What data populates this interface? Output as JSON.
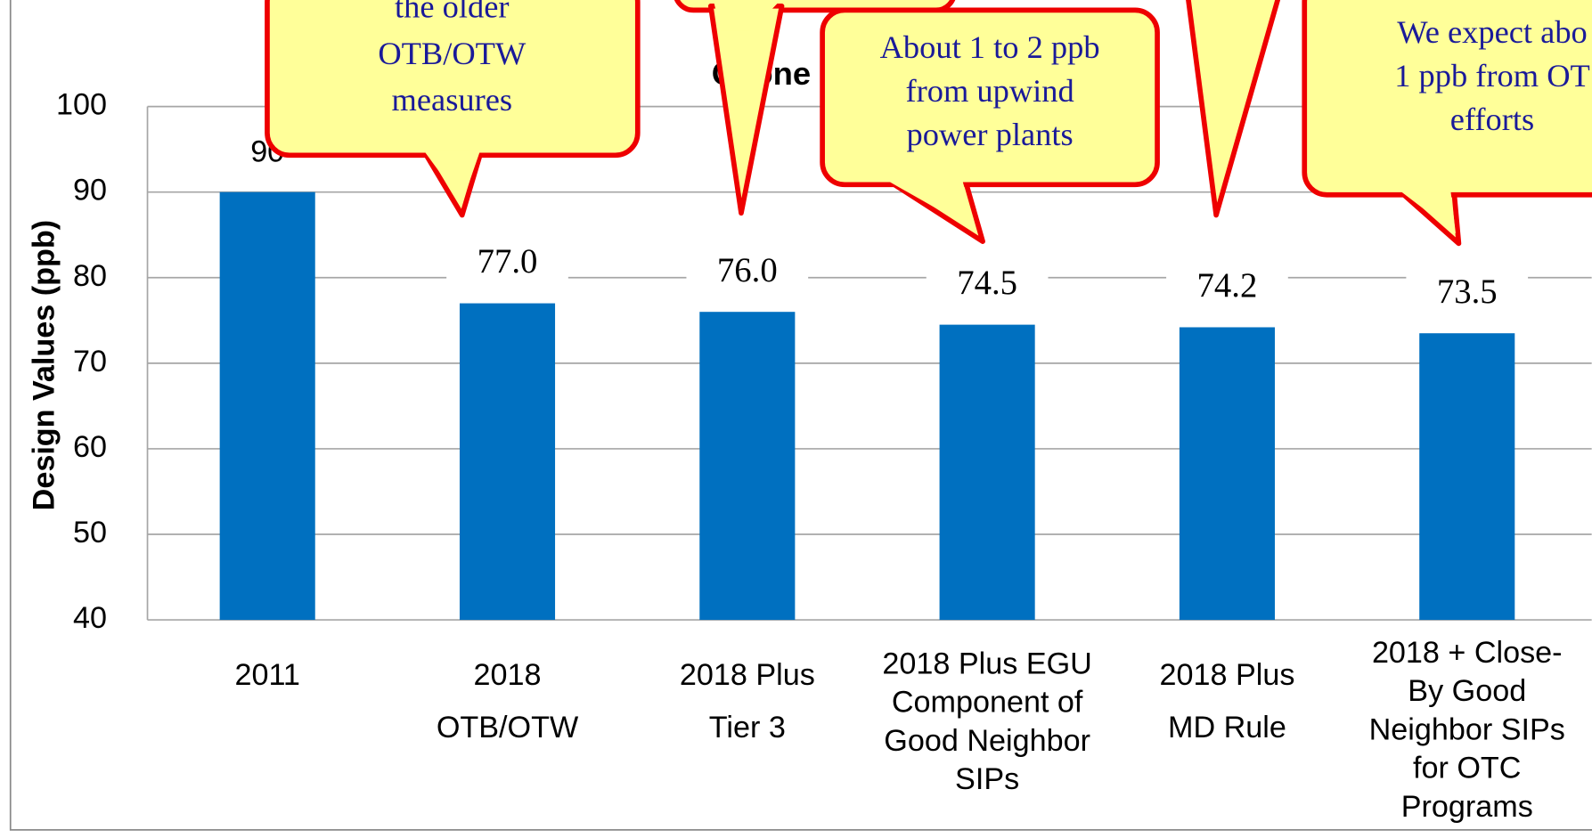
{
  "chart_data": {
    "type": "bar",
    "title": "Ozone Design Values (ppb)",
    "y_label": "Design Values (ppb)",
    "categories": [
      "2011",
      "2018\nOTB/OTW",
      "2018 Plus\nTier 3",
      "2018 Plus EGU\nComponent of\nGood Neighbor\nSIPs",
      "2018 Plus\nMD Rule",
      "2018 + Close-\nBy Good\nNeighbor SIPs\nfor OTC\nPrograms"
    ],
    "values": [
      90,
      77,
      76,
      74.5,
      74.2,
      73.5
    ],
    "value_labels": [
      "90",
      "77.0",
      "76.0",
      "74.5",
      "74.2",
      "73.5"
    ],
    "color": "#0070c0",
    "ylim": [
      40,
      100
    ],
    "yticks": [
      40,
      50,
      60,
      70,
      80,
      90,
      100
    ],
    "grid": true,
    "annotations": [
      "the older\nOTB/OTW\nmeasures",
      "About 1 to 2 ppb\nfrom upwind\npower plants",
      "We expect abo\n1 ppb from OT\nefforts"
    ]
  }
}
